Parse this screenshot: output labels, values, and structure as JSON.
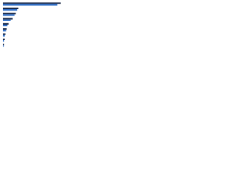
{
  "chart_data": {
    "type": "hbar",
    "categories": [
      null,
      null,
      null,
      null,
      null,
      null,
      null,
      null,
      null
    ],
    "series": [
      {
        "color": "#1b2a48",
        "values": [
          89,
          24,
          20,
          15,
          9,
          6,
          4,
          3,
          2
        ]
      },
      {
        "color": "#2f6fc8",
        "values": [
          84,
          22,
          18,
          12,
          7,
          5,
          3,
          2,
          1.5
        ]
      }
    ],
    "xlim": [
      0,
      100
    ]
  }
}
